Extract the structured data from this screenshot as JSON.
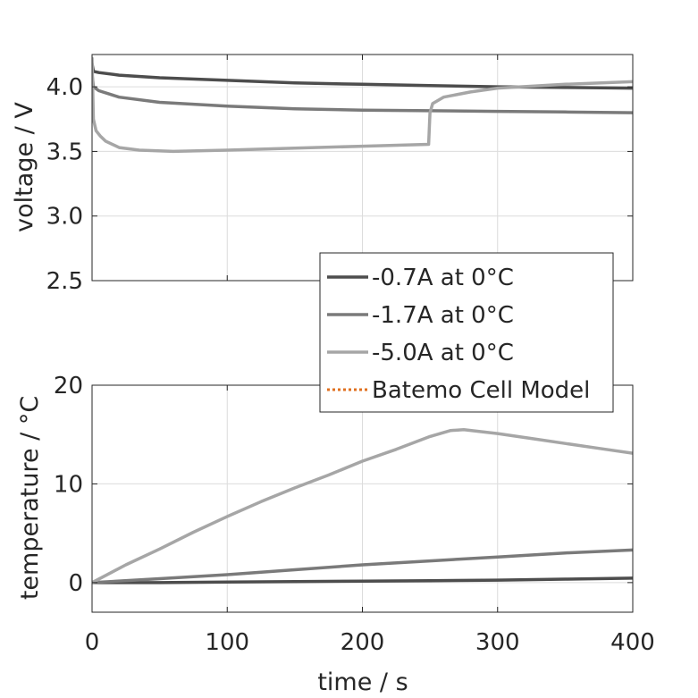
{
  "chart_data": [
    {
      "type": "line",
      "id": "voltage-plot",
      "xlabel": "",
      "ylabel": "voltage / V",
      "xlim": [
        0,
        400
      ],
      "ylim": [
        2.5,
        4.25
      ],
      "xticks": [
        0,
        100,
        200,
        300,
        400
      ],
      "xtick_labels_visible": false,
      "yticks": [
        2.5,
        3.0,
        3.5,
        4.0
      ],
      "ytick_labels": [
        "2.5",
        "3.0",
        "3.5",
        "4.0"
      ],
      "grid": true,
      "series": [
        {
          "name": "-0.7A at 0°C",
          "color": "#4d4d4d",
          "x": [
            0,
            1,
            5,
            20,
            50,
            100,
            150,
            200,
            250,
            300,
            350,
            400
          ],
          "y": [
            4.18,
            4.12,
            4.11,
            4.09,
            4.07,
            4.05,
            4.03,
            4.02,
            4.01,
            4.0,
            3.995,
            3.99
          ]
        },
        {
          "name": "-1.7A at 0°C",
          "color": "#7a7a7a",
          "x": [
            0,
            1,
            5,
            20,
            50,
            100,
            150,
            200,
            250,
            300,
            350,
            400
          ],
          "y": [
            4.1,
            4.0,
            3.97,
            3.92,
            3.88,
            3.85,
            3.83,
            3.82,
            3.815,
            3.81,
            3.805,
            3.8
          ]
        },
        {
          "name": "-5.0A at 0°C",
          "color": "#a6a6a6",
          "x": [
            0,
            1,
            3,
            6,
            10,
            20,
            35,
            60,
            100,
            150,
            200,
            249,
            250,
            252,
            260,
            280,
            300,
            350,
            400
          ],
          "y": [
            4.22,
            3.75,
            3.66,
            3.62,
            3.58,
            3.53,
            3.51,
            3.5,
            3.51,
            3.525,
            3.54,
            3.555,
            3.8,
            3.87,
            3.92,
            3.96,
            3.99,
            4.02,
            4.04
          ]
        }
      ]
    },
    {
      "type": "line",
      "id": "temperature-plot",
      "xlabel": "time / s",
      "ylabel": "temperature / °C",
      "xlim": [
        0,
        400
      ],
      "ylim": [
        -3,
        20
      ],
      "xticks": [
        0,
        100,
        200,
        300,
        400
      ],
      "xtick_labels": [
        "0",
        "100",
        "200",
        "300",
        "400"
      ],
      "yticks": [
        0,
        10,
        20
      ],
      "ytick_labels": [
        "0",
        "10",
        "20"
      ],
      "grid": true,
      "series": [
        {
          "name": "-0.7A at 0°C",
          "color": "#4d4d4d",
          "x": [
            0,
            50,
            100,
            150,
            200,
            250,
            300,
            350,
            400
          ],
          "y": [
            0,
            0.0,
            0.05,
            0.1,
            0.15,
            0.2,
            0.25,
            0.35,
            0.45
          ]
        },
        {
          "name": "-1.7A at 0°C",
          "color": "#7a7a7a",
          "x": [
            0,
            50,
            100,
            150,
            200,
            250,
            300,
            350,
            400
          ],
          "y": [
            0,
            0.4,
            0.8,
            1.3,
            1.8,
            2.2,
            2.6,
            3.0,
            3.3
          ]
        },
        {
          "name": "-5.0A at 0°C",
          "color": "#a6a6a6",
          "x": [
            0,
            25,
            50,
            75,
            100,
            125,
            150,
            175,
            200,
            225,
            250,
            265,
            275,
            300,
            325,
            350,
            375,
            400
          ],
          "y": [
            0,
            1.8,
            3.4,
            5.1,
            6.7,
            8.2,
            9.6,
            10.9,
            12.3,
            13.5,
            14.8,
            15.4,
            15.5,
            15.1,
            14.6,
            14.1,
            13.6,
            13.1
          ]
        }
      ]
    }
  ],
  "legend": {
    "placement": "between plots, right",
    "entries": [
      {
        "label": "-0.7A at 0°C",
        "color": "#4d4d4d",
        "style": "solid"
      },
      {
        "label": "-1.7A at 0°C",
        "color": "#7a7a7a",
        "style": "solid"
      },
      {
        "label": "-5.0A at 0°C",
        "color": "#a6a6a6",
        "style": "solid"
      },
      {
        "label": "Batemo Cell Model",
        "color": "#e0701f",
        "style": "dotted"
      }
    ]
  }
}
